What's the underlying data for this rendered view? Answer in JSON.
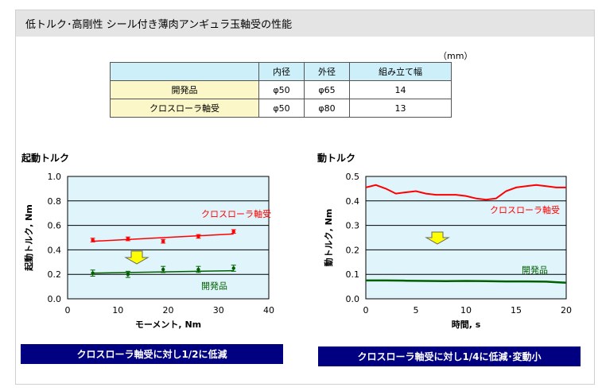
{
  "header": {
    "title": "低トルク･高剛性 シール付き薄肉アンギュラ玉軸受の性能"
  },
  "table": {
    "unit": "（mm）",
    "headers": [
      "",
      "内径",
      "外径",
      "組み立て幅"
    ],
    "rows": [
      [
        "開発品",
        "φ50",
        "φ65",
        "14"
      ],
      [
        "クロスローラ軸受",
        "φ50",
        "φ80",
        "13"
      ]
    ]
  },
  "colors": {
    "cross_roller": "#ff0000",
    "developed": "#006000",
    "arrow": "#ffff00",
    "banner": "#000080",
    "plot_bg": "#dff5fb"
  },
  "chart_data": [
    {
      "type": "scatter",
      "title": "起動トルク",
      "xlabel": "モーメント, Nm",
      "ylabel": "起動トルク, Nm",
      "xlim": [
        0,
        40
      ],
      "ylim": [
        0,
        1.0
      ],
      "xticks": [
        "0",
        "10",
        "20",
        "30",
        "40"
      ],
      "yticks": [
        "0.0",
        "0.2",
        "0.4",
        "0.6",
        "0.8",
        "1.0"
      ],
      "grid": true,
      "series": [
        {
          "name": "クロスローラ軸受",
          "x": [
            5,
            12,
            19,
            26,
            33
          ],
          "y": [
            0.48,
            0.49,
            0.47,
            0.51,
            0.55
          ],
          "trend": [
            0.47,
            0.53
          ]
        },
        {
          "name": "開発品",
          "x": [
            5,
            12,
            19,
            26,
            33
          ],
          "y": [
            0.21,
            0.2,
            0.24,
            0.24,
            0.25
          ],
          "trend": [
            0.21,
            0.23
          ]
        }
      ],
      "annotation": "クロスローラ軸受に対し1/2に低減"
    },
    {
      "type": "line",
      "title": "動トルク",
      "xlabel": "時間, s",
      "ylabel": "動トルク, Nm",
      "xlim": [
        0,
        20
      ],
      "ylim": [
        0,
        0.5
      ],
      "xticks": [
        "0",
        "5",
        "10",
        "15",
        "20"
      ],
      "yticks": [
        "0.0",
        "0.1",
        "0.2",
        "0.3",
        "0.4",
        "0.5"
      ],
      "grid": true,
      "series": [
        {
          "name": "クロスローラ軸受",
          "x": [
            0,
            1,
            2,
            3,
            4,
            5,
            6,
            7,
            8,
            9,
            10,
            11,
            12,
            13,
            14,
            15,
            16,
            17,
            18,
            19,
            20
          ],
          "y": [
            0.455,
            0.465,
            0.45,
            0.43,
            0.435,
            0.44,
            0.43,
            0.425,
            0.425,
            0.425,
            0.42,
            0.41,
            0.405,
            0.41,
            0.44,
            0.455,
            0.46,
            0.465,
            0.46,
            0.455,
            0.455
          ]
        },
        {
          "name": "開発品",
          "x": [
            0,
            2,
            4,
            6,
            8,
            10,
            12,
            14,
            16,
            18,
            19,
            20
          ],
          "y": [
            0.075,
            0.075,
            0.074,
            0.073,
            0.072,
            0.073,
            0.072,
            0.071,
            0.071,
            0.07,
            0.068,
            0.066
          ]
        }
      ],
      "annotation": "クロスローラ軸受に対し1/4に低減･変動小"
    }
  ]
}
